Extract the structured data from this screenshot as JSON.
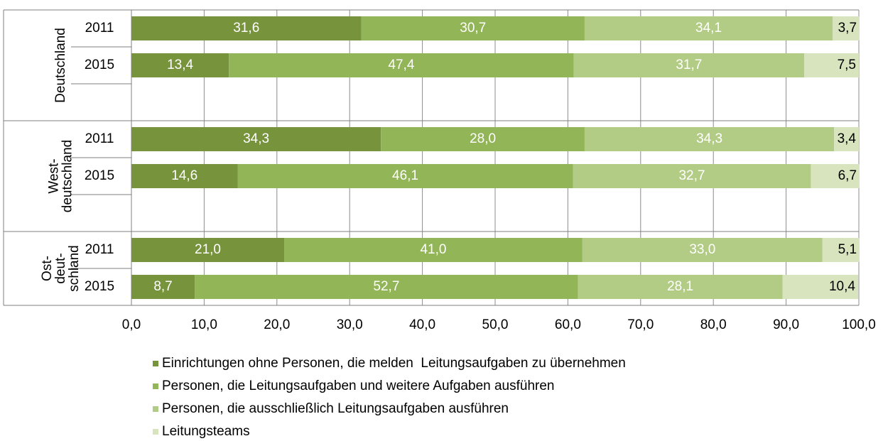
{
  "chart_data": {
    "type": "stacked-bar-horizontal",
    "groups": [
      {
        "name": "Deutschland",
        "categories": [
          "2011",
          "2015"
        ]
      },
      {
        "name": "West-\ndeutschland",
        "categories": [
          "2011",
          "2015"
        ]
      },
      {
        "name": "Ost-\ndeut-\nschland",
        "categories": [
          "2011",
          "2015"
        ]
      }
    ],
    "series": [
      {
        "name": "Einrichtungen ohne Personen, die melden  Leitungsaufgaben zu übernehmen",
        "color": "#77933c",
        "values": [
          31.6,
          13.4,
          34.3,
          14.6,
          21.0,
          8.7
        ],
        "value_labels": [
          "31,6",
          "13,4",
          "34,3",
          "14,6",
          "21,0",
          "8,7"
        ],
        "label_color": "#ffffff"
      },
      {
        "name": "Personen, die Leitungsaufgaben und weitere Aufgaben ausführen",
        "color": "#92b557",
        "values": [
          30.7,
          47.4,
          28.0,
          46.1,
          41.0,
          52.7
        ],
        "value_labels": [
          "30,7",
          "47,4",
          "28,0",
          "46,1",
          "41,0",
          "52,7"
        ],
        "label_color": "#ffffff"
      },
      {
        "name": "Personen, die ausschließlich Leitungsaufgaben ausführen",
        "color": "#b3cc85",
        "values": [
          34.1,
          31.7,
          34.3,
          32.7,
          33.0,
          28.1
        ],
        "value_labels": [
          "34,1",
          "31,7",
          "34,3",
          "32,7",
          "33,0",
          "28,1"
        ],
        "label_color": "#ffffff"
      },
      {
        "name": "Leitungsteams",
        "color": "#d7e4bd",
        "values": [
          3.7,
          7.5,
          3.4,
          6.7,
          5.1,
          10.4
        ],
        "value_labels": [
          "3,7",
          "7,5",
          "3,4",
          "6,7",
          "5,1",
          "10,4"
        ],
        "label_color": "#000000"
      }
    ],
    "xlim": [
      0,
      100
    ],
    "xticks": [
      {
        "value": 0,
        "label": "0,0"
      },
      {
        "value": 10,
        "label": "10,0"
      },
      {
        "value": 20,
        "label": "20,0"
      },
      {
        "value": 30,
        "label": "30,0"
      },
      {
        "value": 40,
        "label": "40,0"
      },
      {
        "value": 50,
        "label": "50,0"
      },
      {
        "value": 60,
        "label": "60,0"
      },
      {
        "value": 70,
        "label": "70,0"
      },
      {
        "value": 80,
        "label": "80,0"
      },
      {
        "value": 90,
        "label": "90,0"
      },
      {
        "value": 100,
        "label": "100,0"
      }
    ],
    "grid": true
  }
}
